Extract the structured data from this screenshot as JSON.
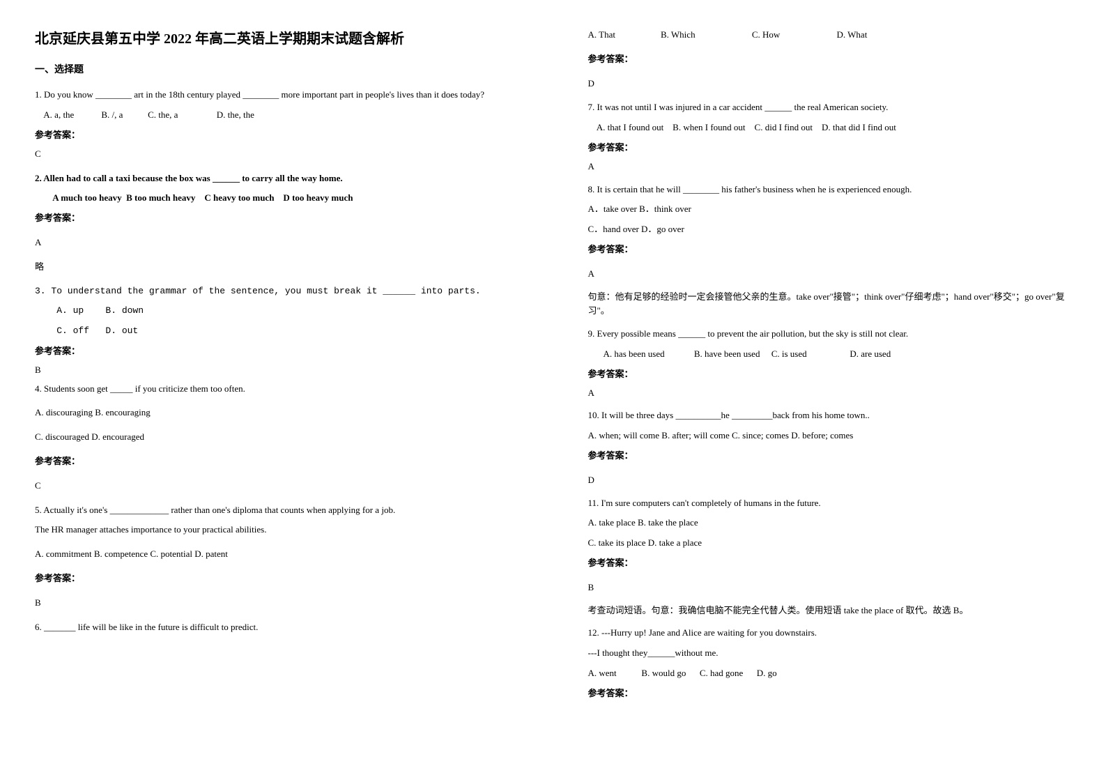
{
  "title": "北京延庆县第五中学 2022 年高二英语上学期期末试题含解析",
  "section1": "一、选择题",
  "left": {
    "q1": {
      "text": "1. Do you know ________ art in the 18th century played ________ more important part in people's lives than it does today?",
      "opts": "    A. a, the            B. /, a           C. the, a                 D. the, the",
      "ans_label": "参考答案：",
      "ans": "C"
    },
    "q2": {
      "text": "2. Allen had to call a taxi because the box was ______ to carry all the way home.",
      "opts": "        A much too heavy  B too much heavy    C heavy too much    D too heavy much",
      "ans_label": "参考答案：",
      "ans": "A",
      "note": "略"
    },
    "q3": {
      "text": "3. To understand the grammar of the sentence, you must break it ______ into parts.",
      "opts1": "    A. up    B. down",
      "opts2": "    C. off   D. out",
      "ans_label": "参考答案：",
      "ans": "B"
    },
    "q4": {
      "text": "4. Students soon get _____ if you criticize them too often.",
      "opts1": "A. discouraging              B. encouraging",
      "opts2": "C. discouraged                 D. encouraged",
      "ans_label": "参考答案：",
      "ans": "C"
    },
    "q5": {
      "text1": "5. Actually it's one's _____________ rather than one's diploma that counts when applying for a job.",
      "text2": "The HR manager attaches importance to your practical abilities.",
      "opts": "A. commitment      B. competence      C. potential      D. patent",
      "ans_label": "参考答案：",
      "ans": "B"
    },
    "q6": {
      "text": "6. _______ life will be like in the future is difficult to predict."
    }
  },
  "right": {
    "q6": {
      "opts": "A. That                    B. Which                         C. How                         D. What",
      "ans_label": "参考答案：",
      "ans": "D"
    },
    "q7": {
      "text": "7. It was not until I was injured in a car accident ______ the real American society.",
      "opts": "    A. that I found out    B. when I found out    C. did I find out    D. that did I find out",
      "ans_label": "参考答案：",
      "ans": "A"
    },
    "q8": {
      "text": "8. It is certain that he will ________ his father's business when he is experienced enough.",
      "opts1": "A．take over    B．think over",
      "opts2": "C．hand over    D．go over",
      "ans_label": "参考答案：",
      "ans": "A",
      "explain": "句意：他有足够的经验时一定会接管他父亲的生意。take over\"接管\"；think over\"仔细考虑\"；hand over\"移交\"；go over\"复习\"。"
    },
    "q9": {
      "text": "9. Every possible means ______ to prevent the air pollution, but the sky is still not clear.",
      "opts": "       A. has been used             B. have been used     C. is used                   D. are used",
      "ans_label": "参考答案：",
      "ans": "A"
    },
    "q10": {
      "text": "10. It will be three days __________he _________back from his home town..",
      "opts": "A. when; will come  B. after; will come  C. since; comes  D. before; comes",
      "ans_label": "参考答案：",
      "ans": "D"
    },
    "q11": {
      "text": "11. I'm sure computers can't completely    of humans in the future.",
      "opts1": "A. take place       B. take the place",
      "opts2": "C. take its place D. take a place",
      "ans_label": "参考答案：",
      "ans": "B",
      "explain": "考查动词短语。句意：我确信电脑不能完全代替人类。使用短语 take the place of 取代。故选 B。"
    },
    "q12": {
      "text1": "12. ---Hurry up! Jane and Alice are waiting for you downstairs.",
      "text2": "---I thought they______without me.",
      "opts": "A. went           B. would go      C. had gone      D. go",
      "ans_label": "参考答案："
    }
  }
}
